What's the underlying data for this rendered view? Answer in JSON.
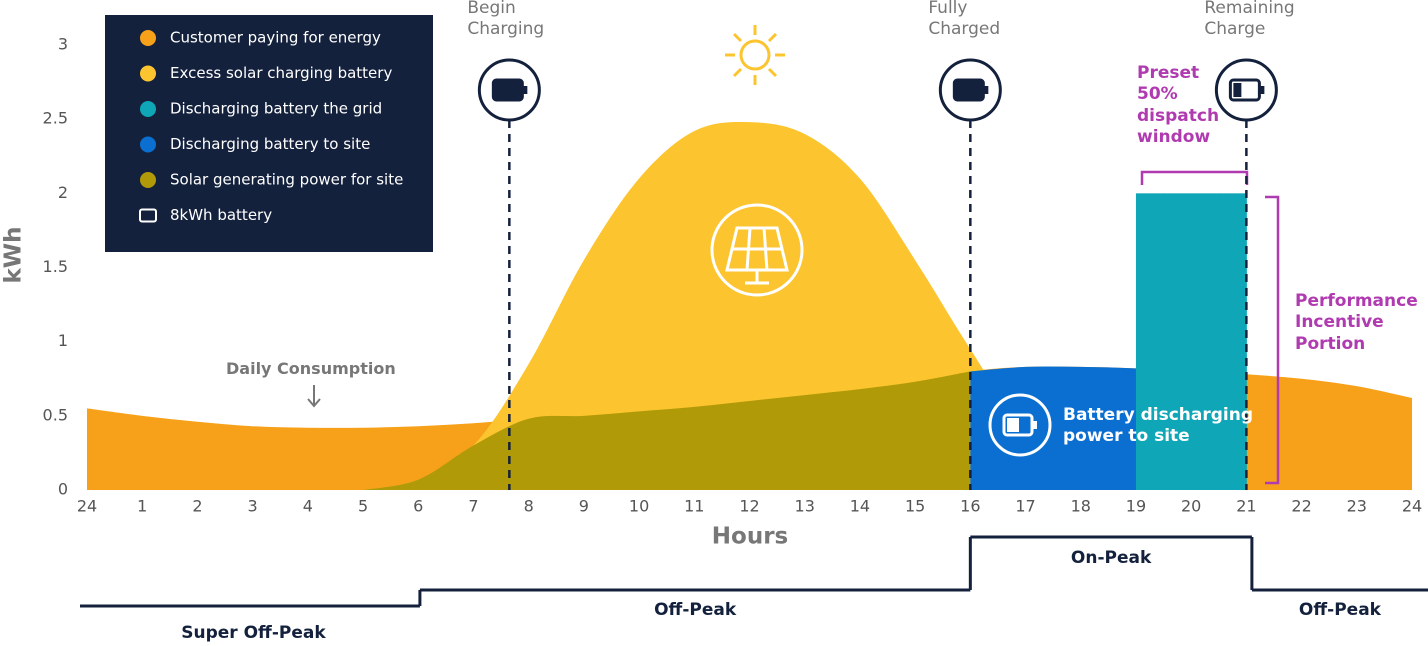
{
  "chart_data": {
    "type": "area",
    "x_label": "Hours",
    "y_label": "kWh",
    "x": [
      0,
      1,
      2,
      3,
      4,
      5,
      6,
      7,
      8,
      9,
      10,
      11,
      12,
      13,
      14,
      15,
      16,
      17,
      18,
      19,
      20,
      21,
      22,
      23,
      24
    ],
    "xlim": [
      0,
      24
    ],
    "xticks": [
      {
        "value": 0,
        "label": "24"
      },
      1,
      2,
      3,
      4,
      5,
      6,
      7,
      8,
      9,
      10,
      11,
      12,
      13,
      14,
      15,
      16,
      17,
      18,
      19,
      20,
      21,
      22,
      23,
      24
    ],
    "ylim": [
      0,
      3
    ],
    "yticks": [
      0,
      0.5,
      1,
      1.5,
      2,
      2.5,
      3
    ],
    "grid": true,
    "series": [
      {
        "name": "Customer paying for energy",
        "color": "#f7a11a",
        "values": [
          0.55,
          0.5,
          0.46,
          0.43,
          0.42,
          0.42,
          0.43,
          0.45,
          0.48,
          0.5,
          0.53,
          0.56,
          0.6,
          0.64,
          0.68,
          0.73,
          0.8,
          0.83,
          0.83,
          0.82,
          0.8,
          0.78,
          0.75,
          0.7,
          0.62
        ]
      },
      {
        "name": "Excess solar charging battery",
        "color": "#fcc52f",
        "values": [
          null,
          null,
          null,
          null,
          null,
          0,
          0.07,
          0.3,
          0.85,
          1.55,
          2.1,
          2.42,
          2.48,
          2.4,
          2.1,
          1.55,
          0.95,
          0.4,
          0.12,
          0.02,
          0,
          null,
          null,
          null,
          null
        ]
      },
      {
        "name": "Discharging battery the grid",
        "color": "#0fa6b8",
        "values": [
          null,
          null,
          null,
          null,
          null,
          null,
          null,
          null,
          null,
          null,
          null,
          null,
          null,
          null,
          null,
          null,
          null,
          null,
          null,
          2,
          2,
          2,
          null,
          null,
          null
        ]
      },
      {
        "name": "Discharging battery to site",
        "color": "#0a6fd0",
        "values": [
          null,
          null,
          null,
          null,
          null,
          null,
          null,
          null,
          null,
          null,
          null,
          null,
          null,
          null,
          null,
          null,
          0.8,
          0.83,
          0.83,
          0.82,
          0.8,
          0.78,
          null,
          null,
          null
        ]
      },
      {
        "name": "Solar generating power for site",
        "color": "#b19a08",
        "values": [
          null,
          null,
          null,
          null,
          null,
          0,
          0.07,
          0.3,
          0.48,
          0.5,
          0.53,
          0.56,
          0.6,
          0.64,
          0.68,
          0.73,
          0.8,
          null,
          null,
          null,
          null,
          null,
          null,
          null,
          null
        ]
      }
    ],
    "battery_legend": "8kWh battery",
    "events": [
      {
        "label": "Begin Charging",
        "x": 7.65
      },
      {
        "label": "Fully Charged",
        "x": 16
      },
      {
        "label": "Remaining Charge",
        "x": 21
      }
    ],
    "annotations": {
      "consumption": "Daily Consumption",
      "discharge": "Battery discharging power to site",
      "dispatch": "Preset 50% dispatch window",
      "incentive": "Performance Incentive Portion"
    },
    "periods": [
      {
        "label": "Super Off-Peak",
        "start": 0,
        "end": 6.03
      },
      {
        "label": "Off-Peak",
        "start": 6.03,
        "end": 16
      },
      {
        "label": "On-Peak",
        "start": 16,
        "end": 21.1
      },
      {
        "label": "Off-Peak",
        "start": 21.1,
        "end": 24
      }
    ]
  }
}
